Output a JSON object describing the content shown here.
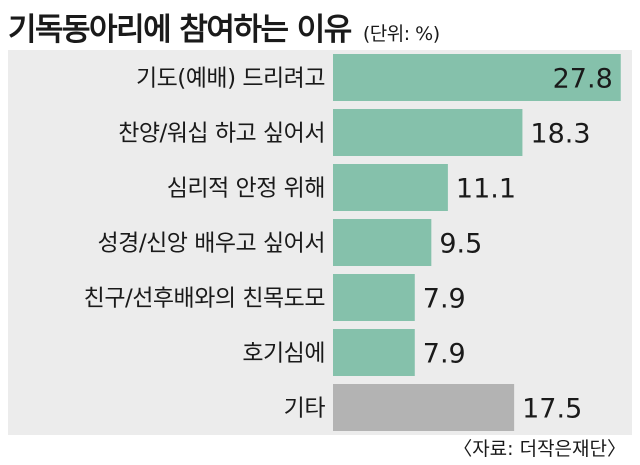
{
  "title": "기독동아리에 참여하는 이유",
  "unit_note": "(단위: %)",
  "source": "〈자료: 더작은재단〉",
  "colors": {
    "bar_main": "#85c1ab",
    "bar_other": "#b3b3b3",
    "plot_bg": "#ececec",
    "text": "#1a1a1a"
  },
  "chart_data": {
    "type": "bar",
    "orientation": "horizontal",
    "categories": [
      "기도(예배) 드리려고",
      "찬양/워십 하고 싶어서",
      "심리적 안정 위해",
      "성경/신앙 배우고 싶어서",
      "친구/선후배와의 친목도모",
      "호기심에",
      "기타"
    ],
    "values": [
      27.8,
      18.3,
      11.1,
      9.5,
      7.9,
      7.9,
      17.5
    ],
    "value_labels": [
      "27.8",
      "18.3",
      "11.1",
      "9.5",
      "7.9",
      "7.9",
      "17.5"
    ],
    "xlim": [
      0,
      28.5
    ],
    "grid": false,
    "legend": "none"
  }
}
